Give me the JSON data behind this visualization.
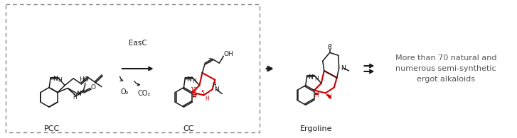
{
  "background_color": "#ffffff",
  "dashed_box_color": "#888888",
  "black": "#1a1a1a",
  "red": "#cc0000",
  "dark_gray": "#555555",
  "label_pcc": "PCC",
  "label_cc": "CC",
  "label_ergoline": "Ergoline",
  "label_easc": "EasC",
  "label_o2": "O₂",
  "label_co2": "CO₂",
  "text_more": "More than 70 natural and\nnumerous semi-synthetic\nergot alkaloids",
  "fig_width": 7.27,
  "fig_height": 1.95,
  "dpi": 100
}
